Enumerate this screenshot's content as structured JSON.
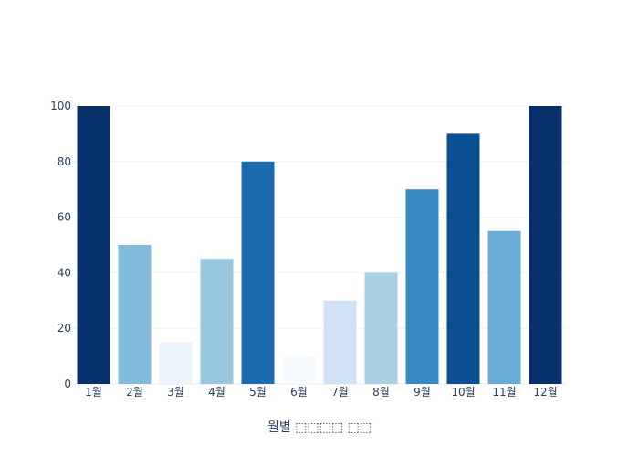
{
  "chart_data": {
    "type": "bar",
    "categories": [
      "1월",
      "2월",
      "3월",
      "4월",
      "5월",
      "6월",
      "7월",
      "8월",
      "9월",
      "10월",
      "11월",
      "12월"
    ],
    "values": [
      100,
      50,
      15,
      45,
      80,
      10,
      30,
      40,
      70,
      90,
      55,
      100
    ],
    "colors": [
      "#08306b",
      "#82bbdb",
      "#eaf2fb",
      "#98c7df",
      "#1c6aaf",
      "#f7fbff",
      "#cfe1f2",
      "#abcfe5",
      "#3888c1",
      "#0a4f91",
      "#68acd5",
      "#08306b"
    ],
    "xlabel": "월별 ⬚⬚⬚⬚ ⬚⬚",
    "ylabel": "",
    "ylim": [
      0,
      100
    ],
    "yticks": [
      0,
      20,
      40,
      60,
      80,
      100
    ],
    "grid": true,
    "colorscale": "Blues"
  }
}
